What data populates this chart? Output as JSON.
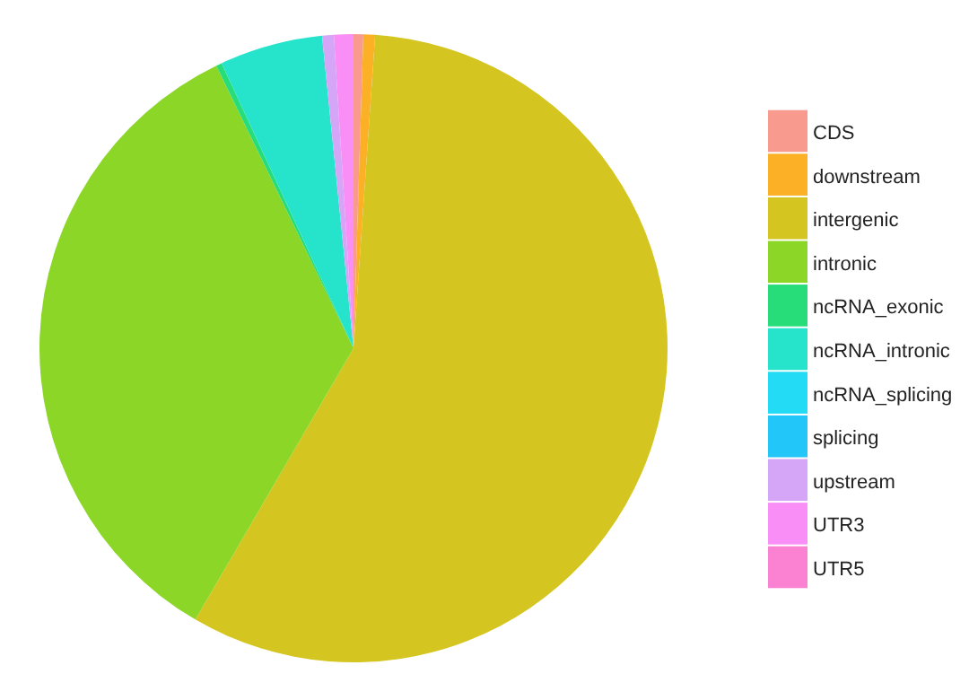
{
  "chart_data": {
    "type": "pie",
    "categories": [
      "CDS",
      "downstream",
      "intergenic",
      "intronic",
      "ncRNA_exonic",
      "ncRNA_intronic",
      "ncRNA_splicing",
      "splicing",
      "upstream",
      "UTR3",
      "UTR5"
    ],
    "values": [
      0.5,
      0.6,
      57.3,
      34.4,
      0.3,
      5.3,
      0,
      0,
      0.6,
      1.0,
      0
    ],
    "colors": [
      "#f99a8f",
      "#fbb025",
      "#d4c520",
      "#8cd628",
      "#27dd7a",
      "#26e3cc",
      "#23dbf5",
      "#22c6f8",
      "#d5a6f8",
      "#f98ef7",
      "#fb82d3"
    ],
    "legend": "right"
  }
}
